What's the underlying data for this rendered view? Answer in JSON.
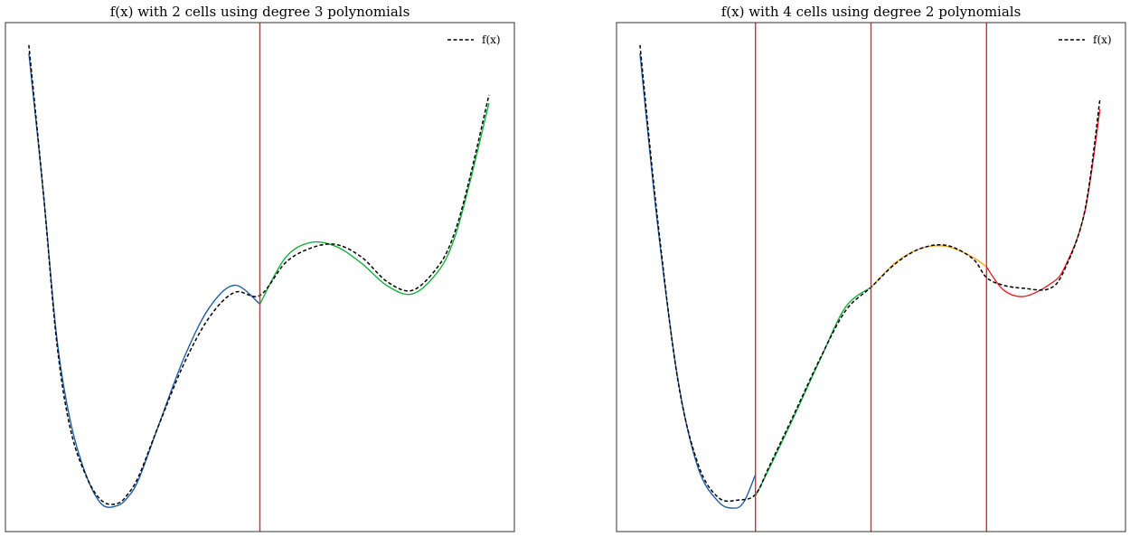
{
  "chart_data": [
    {
      "type": "line",
      "title": "f(x) with 2 cells using degree 3 polynomials",
      "xlim": [
        0,
        1
      ],
      "ylim": [
        0,
        1
      ],
      "grid": false,
      "axes_ticks": false,
      "legend": {
        "position": "top-right",
        "entries": [
          "f(x)"
        ]
      },
      "series": [
        {
          "name": "f(x)",
          "color": "#000000",
          "dashed": true,
          "x": [
            0.046,
            0.075,
            0.101,
            0.128,
            0.16,
            0.19,
            0.22,
            0.24,
            0.262,
            0.3,
            0.35,
            0.4,
            0.45,
            0.5,
            0.55,
            0.6,
            0.65,
            0.7,
            0.75,
            0.8,
            0.85,
            0.88,
            0.91,
            0.95
          ],
          "y": [
            0.956,
            0.661,
            0.37,
            0.2,
            0.106,
            0.06,
            0.055,
            0.073,
            0.109,
            0.206,
            0.328,
            0.42,
            0.47,
            0.464,
            0.528,
            0.557,
            0.564,
            0.539,
            0.491,
            0.474,
            0.521,
            0.58,
            0.685,
            0.858
          ]
        },
        {
          "name": "",
          "color": "#1f5fa8",
          "dashed": false,
          "x": [
            0.046,
            0.075,
            0.101,
            0.128,
            0.16,
            0.19,
            0.22,
            0.24,
            0.262,
            0.3,
            0.35,
            0.4,
            0.45,
            0.5
          ],
          "y": [
            0.94,
            0.661,
            0.38,
            0.215,
            0.107,
            0.053,
            0.051,
            0.067,
            0.103,
            0.206,
            0.339,
            0.439,
            0.484,
            0.447
          ]
        },
        {
          "name": "",
          "color": "#13b13c",
          "dashed": false,
          "x": [
            0.5,
            0.55,
            0.6,
            0.65,
            0.7,
            0.75,
            0.8,
            0.85,
            0.88,
            0.91,
            0.95
          ],
          "y": [
            0.447,
            0.538,
            0.568,
            0.56,
            0.527,
            0.483,
            0.467,
            0.511,
            0.57,
            0.676,
            0.842
          ]
        }
      ],
      "cell_boundaries": [
        0.5
      ],
      "boundary_color": "#e8252a"
    },
    {
      "type": "line",
      "title": "f(x) with 4 cells using degree 2 polynomials",
      "xlim": [
        0,
        1
      ],
      "ylim": [
        0,
        1
      ],
      "grid": false,
      "axes_ticks": false,
      "legend": {
        "position": "top-right",
        "entries": [
          "f(x)"
        ]
      },
      "series": [
        {
          "name": "f(x)",
          "color": "#000000",
          "dashed": true,
          "x": [
            0.046,
            0.08,
            0.12,
            0.16,
            0.2,
            0.24,
            0.273,
            0.3,
            0.35,
            0.4,
            0.45,
            0.5,
            0.55,
            0.6,
            0.65,
            0.7,
            0.727,
            0.76,
            0.8,
            0.85,
            0.88,
            0.92,
            0.95
          ],
          "y": [
            0.956,
            0.62,
            0.3,
            0.133,
            0.067,
            0.062,
            0.073,
            0.128,
            0.233,
            0.34,
            0.434,
            0.48,
            0.528,
            0.557,
            0.562,
            0.536,
            0.499,
            0.484,
            0.478,
            0.477,
            0.514,
            0.63,
            0.85
          ]
        },
        {
          "name": "",
          "color": "#1f5fa8",
          "dashed": false,
          "x": [
            0.046,
            0.08,
            0.12,
            0.16,
            0.2,
            0.23,
            0.25,
            0.273
          ],
          "y": [
            0.94,
            0.61,
            0.302,
            0.126,
            0.059,
            0.046,
            0.058,
            0.112
          ]
        },
        {
          "name": "",
          "color": "#13b13c",
          "dashed": false,
          "x": [
            0.273,
            0.3,
            0.35,
            0.4,
            0.45,
            0.5
          ],
          "y": [
            0.07,
            0.124,
            0.229,
            0.338,
            0.441,
            0.48
          ]
        },
        {
          "name": "",
          "color": "#f5a623",
          "dashed": false,
          "x": [
            0.5,
            0.55,
            0.6,
            0.65,
            0.7,
            0.727
          ],
          "y": [
            0.48,
            0.53,
            0.557,
            0.56,
            0.539,
            0.52
          ]
        },
        {
          "name": "",
          "color": "#e8252a",
          "dashed": false,
          "x": [
            0.727,
            0.76,
            0.8,
            0.85,
            0.88,
            0.92,
            0.95
          ],
          "y": [
            0.52,
            0.475,
            0.462,
            0.485,
            0.518,
            0.628,
            0.83
          ]
        }
      ],
      "cell_boundaries": [
        0.273,
        0.5,
        0.727
      ],
      "boundary_color": "#e8252a"
    }
  ]
}
